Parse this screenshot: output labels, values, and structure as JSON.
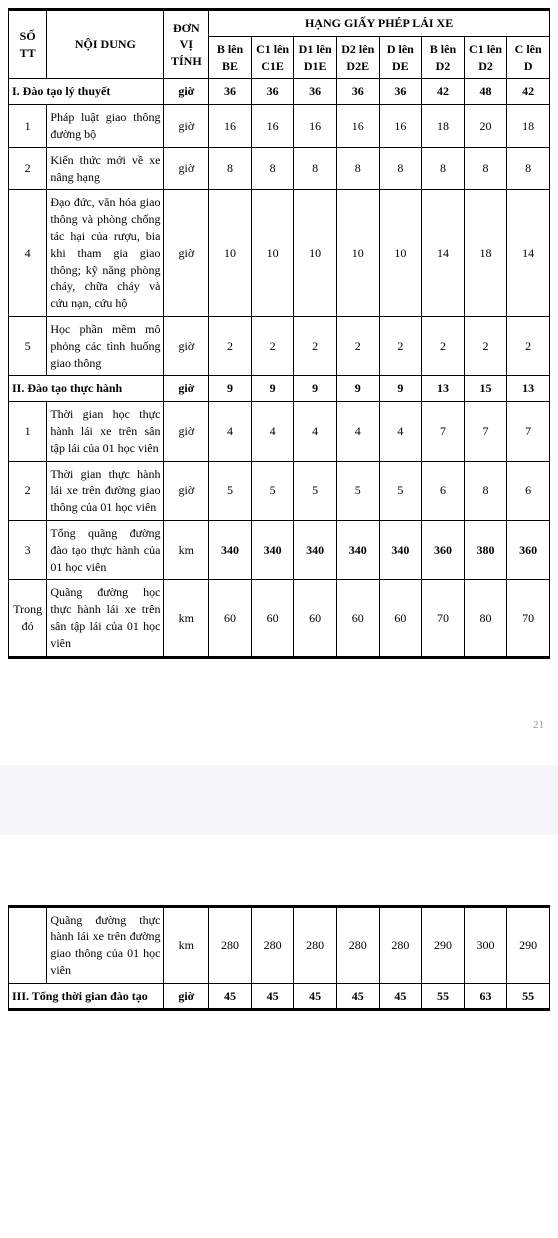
{
  "header": {
    "stt": "SỐ TT",
    "noidung": "NỘI DUNG",
    "donvi": "ĐƠN VỊ TÍNH",
    "hang_title": "HẠNG GIẤY PHÉP LÁI XE",
    "cols": [
      "B lên BE",
      "C1 lên C1E",
      "D1 lên D1E",
      "D2 lên D2E",
      "D lên DE",
      "B lên D2",
      "C1 lên D2",
      "C lên D"
    ]
  },
  "sections": {
    "s1": {
      "label": "I. Đào tạo lý thuyết",
      "unit": "giờ",
      "vals": [
        "36",
        "36",
        "36",
        "36",
        "36",
        "42",
        "48",
        "42"
      ]
    },
    "s2": {
      "label": "II. Đào tạo thực hành",
      "unit": "giờ",
      "vals": [
        "9",
        "9",
        "9",
        "9",
        "9",
        "13",
        "15",
        "13"
      ]
    },
    "s3": {
      "label": "III. Tổng thời gian đào tạo",
      "unit": "giờ",
      "vals": [
        "45",
        "45",
        "45",
        "45",
        "45",
        "55",
        "63",
        "55"
      ]
    }
  },
  "rows1": [
    {
      "stt": "1",
      "nd": "Pháp luật giao thông đường bộ",
      "unit": "giờ",
      "vals": [
        "16",
        "16",
        "16",
        "16",
        "16",
        "18",
        "20",
        "18"
      ]
    },
    {
      "stt": "2",
      "nd": "Kiến thức mới về xe nâng hạng",
      "unit": "giờ",
      "vals": [
        "8",
        "8",
        "8",
        "8",
        "8",
        "8",
        "8",
        "8"
      ]
    },
    {
      "stt": "4",
      "nd": "Đạo đức, văn hóa giao thông và phòng chống tác hại của rượu, bia khi tham gia giao thông; kỹ năng phòng cháy, chữa cháy và cứu nạn, cứu hộ",
      "unit": "giờ",
      "vals": [
        "10",
        "10",
        "10",
        "10",
        "10",
        "14",
        "18",
        "14"
      ]
    },
    {
      "stt": "5",
      "nd": "Học phần mềm mô phỏng các tình huống giao thông",
      "unit": "giờ",
      "vals": [
        "2",
        "2",
        "2",
        "2",
        "2",
        "2",
        "2",
        "2"
      ]
    }
  ],
  "rows2": [
    {
      "stt": "1",
      "nd": "Thời gian học thực hành lái xe trên sân tập lái của 01 học viên",
      "unit": "giờ",
      "vals": [
        "4",
        "4",
        "4",
        "4",
        "4",
        "7",
        "7",
        "7"
      ]
    },
    {
      "stt": "2",
      "nd": "Thời gian thực hành lái xe trên đường giao thông của 01 học viên",
      "unit": "giờ",
      "vals": [
        "5",
        "5",
        "5",
        "5",
        "5",
        "6",
        "8",
        "6"
      ]
    },
    {
      "stt": "3",
      "nd": "Tổng quãng đường đào tạo thực hành của 01 học viên",
      "unit": "km",
      "vals": [
        "340",
        "340",
        "340",
        "340",
        "340",
        "360",
        "380",
        "360"
      ],
      "bold": true
    },
    {
      "stt": "Trong đó",
      "nd": "Quãng đường học thực hành lái xe trên sân tập lái của 01 học viên",
      "unit": "km",
      "vals": [
        "60",
        "60",
        "60",
        "60",
        "60",
        "70",
        "80",
        "70"
      ]
    }
  ],
  "rows3": [
    {
      "stt": "",
      "nd": "Quãng đường thực hành lái xe trên đường giao thông của 01 học viên",
      "unit": "km",
      "vals": [
        "280",
        "280",
        "280",
        "280",
        "280",
        "290",
        "300",
        "290"
      ]
    }
  ],
  "page_num": "21"
}
